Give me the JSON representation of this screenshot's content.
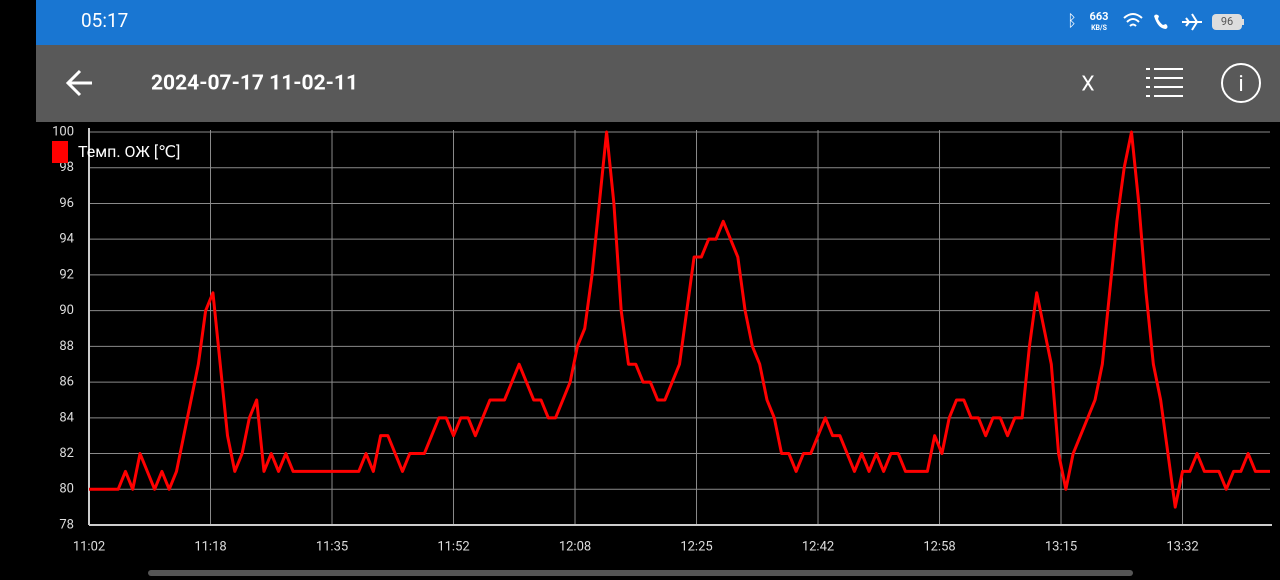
{
  "status_bar": {
    "time": "05:17",
    "speed": "663",
    "speed_unit": "KB/S",
    "battery": "96"
  },
  "toolbar": {
    "title": "2024-07-17 11-02-11",
    "close": "X"
  },
  "chart_data": {
    "type": "line",
    "x": [
      "11:02",
      "11:03",
      "11:04",
      "11:05",
      "11:06",
      "11:07",
      "11:08",
      "11:09",
      "11:10",
      "11:11",
      "11:12",
      "11:13",
      "11:14",
      "11:15",
      "11:16",
      "11:17",
      "11:18",
      "11:19",
      "11:20",
      "11:21",
      "11:22",
      "11:23",
      "11:24",
      "11:25",
      "11:26",
      "11:27",
      "11:28",
      "11:29",
      "11:30",
      "11:31",
      "11:32",
      "11:33",
      "11:34",
      "11:35",
      "11:36",
      "11:37",
      "11:38",
      "11:39",
      "11:40",
      "11:41",
      "11:42",
      "11:43",
      "11:44",
      "11:45",
      "11:46",
      "11:47",
      "11:48",
      "11:49",
      "11:50",
      "11:51",
      "11:52",
      "11:53",
      "11:54",
      "11:55",
      "11:56",
      "11:57",
      "11:58",
      "11:59",
      "12:00",
      "12:01",
      "12:02",
      "12:03",
      "12:04",
      "12:05",
      "12:06",
      "12:07",
      "12:08",
      "12:09",
      "12:10",
      "12:11",
      "12:12",
      "12:13",
      "12:14",
      "12:15",
      "12:16",
      "12:17",
      "12:18",
      "12:19",
      "12:20",
      "12:21",
      "12:22",
      "12:23",
      "12:24",
      "12:25",
      "12:26",
      "12:27",
      "12:28",
      "12:29",
      "12:30",
      "12:31",
      "12:32",
      "12:33",
      "12:34",
      "12:35",
      "12:36",
      "12:37",
      "12:38",
      "12:39",
      "12:40",
      "12:41",
      "12:42",
      "12:43",
      "12:44",
      "12:45",
      "12:46",
      "12:47",
      "12:48",
      "12:49",
      "12:50",
      "12:51",
      "12:52",
      "12:53",
      "12:54",
      "12:55",
      "12:56",
      "12:57",
      "12:58",
      "12:59",
      "13:00",
      "13:01",
      "13:02",
      "13:03",
      "13:04",
      "13:05",
      "13:06",
      "13:07",
      "13:08",
      "13:09",
      "13:10",
      "13:11",
      "13:12",
      "13:13",
      "13:14",
      "13:15",
      "13:16",
      "13:17",
      "13:18",
      "13:19",
      "13:20",
      "13:21",
      "13:22",
      "13:23",
      "13:24",
      "13:25",
      "13:26",
      "13:27",
      "13:28",
      "13:29",
      "13:30",
      "13:31",
      "13:32",
      "13:33",
      "13:34",
      "13:35",
      "13:36",
      "13:37",
      "13:38",
      "13:39",
      "13:40",
      "13:41",
      "13:42",
      "13:43",
      "13:44"
    ],
    "series": [
      {
        "name": "Темп. ОЖ [℃]",
        "color": "#ff0000",
        "values": [
          80,
          80,
          80,
          80,
          80,
          81,
          80,
          82,
          81,
          80,
          81,
          80,
          81,
          83,
          85,
          87,
          90,
          91,
          87,
          83,
          81,
          82,
          84,
          85,
          81,
          82,
          81,
          82,
          81,
          81,
          81,
          81,
          81,
          81,
          81,
          81,
          81,
          81,
          82,
          81,
          83,
          83,
          82,
          81,
          82,
          82,
          82,
          83,
          84,
          84,
          83,
          84,
          84,
          83,
          84,
          85,
          85,
          85,
          86,
          87,
          86,
          85,
          85,
          84,
          84,
          85,
          86,
          88,
          89,
          92,
          96,
          100,
          96,
          90,
          87,
          87,
          86,
          86,
          85,
          85,
          86,
          87,
          90,
          93,
          93,
          94,
          94,
          95,
          94,
          93,
          90,
          88,
          87,
          85,
          84,
          82,
          82,
          81,
          82,
          82,
          83,
          84,
          83,
          83,
          82,
          81,
          82,
          81,
          82,
          81,
          82,
          82,
          81,
          81,
          81,
          81,
          83,
          82,
          84,
          85,
          85,
          84,
          84,
          83,
          84,
          84,
          83,
          84,
          84,
          88,
          91,
          89,
          87,
          82,
          80,
          82,
          83,
          84,
          85,
          87,
          91,
          95,
          98,
          100,
          96,
          91,
          87,
          85,
          82,
          79,
          81,
          81,
          82,
          81,
          81,
          81,
          80,
          81,
          81,
          82,
          81,
          81,
          81
        ]
      }
    ],
    "xlim": [
      "11:02",
      "13:44"
    ],
    "xticks": [
      {
        "value": "11:02:00",
        "label": "11:02"
      },
      {
        "value": "11:18:40",
        "label": "11:18"
      },
      {
        "value": "11:35:20",
        "label": "11:35"
      },
      {
        "value": "11:52:00",
        "label": "11:52"
      },
      {
        "value": "12:08:40",
        "label": "12:08"
      },
      {
        "value": "12:25:20",
        "label": "12:25"
      },
      {
        "value": "12:42:00",
        "label": "12:42"
      },
      {
        "value": "12:58:40",
        "label": "12:58"
      },
      {
        "value": "13:15:20",
        "label": "13:15"
      },
      {
        "value": "13:32:00",
        "label": "13:32"
      }
    ],
    "ylim": [
      78,
      100
    ],
    "yticks": [
      78,
      80,
      82,
      84,
      86,
      88,
      90,
      92,
      94,
      96,
      98,
      100
    ],
    "grid": true,
    "legend": "top-left"
  }
}
